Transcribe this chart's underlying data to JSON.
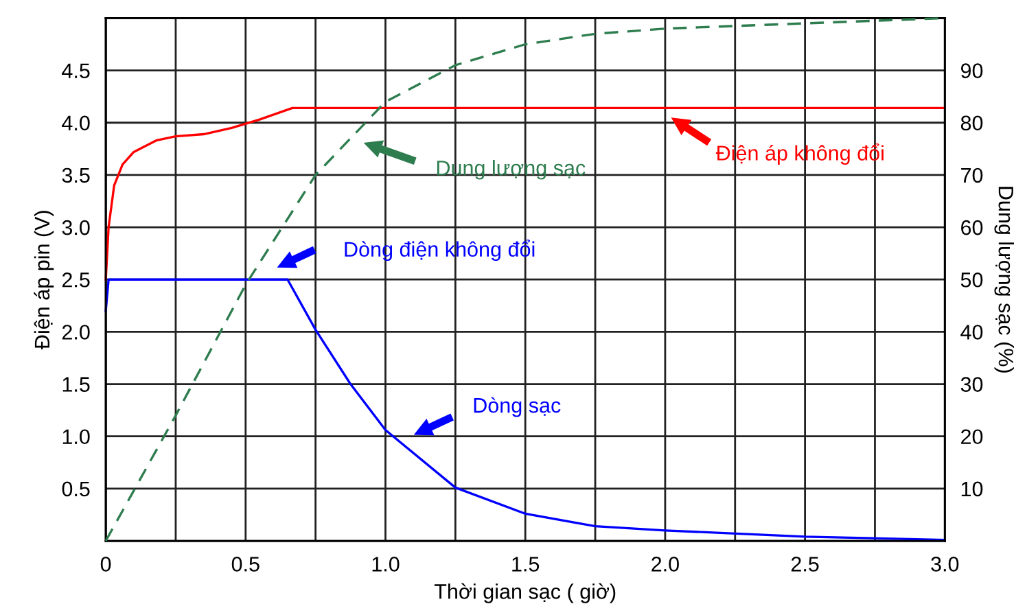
{
  "chart_data": {
    "type": "line",
    "xlabel": "Thời gian sạc ( giờ)",
    "ylabel": "Điện áp pin (V)",
    "y2label": "Dung lượng sạc (%)",
    "series": [
      {
        "color": "#ff0000",
        "line_style": "solid",
        "x": [
          0,
          0.01,
          0.03,
          0.06,
          0.1,
          0.18,
          0.25,
          0.35,
          0.45,
          0.55,
          0.667,
          1.0,
          2.0,
          3.0
        ],
        "values": [
          2.5,
          3.0,
          3.4,
          3.6,
          3.72,
          3.83,
          3.87,
          3.89,
          3.95,
          4.03,
          4.14,
          4.14,
          4.14,
          4.14
        ]
      },
      {
        "color": "#0000ff",
        "line_style": "solid",
        "x": [
          0,
          0.01,
          0.3,
          0.65,
          0.75,
          0.875,
          1.0,
          1.25,
          1.5,
          1.75,
          2.0,
          2.5,
          3.0
        ],
        "values": [
          2.2,
          2.5,
          2.5,
          2.5,
          2.02,
          1.5,
          1.06,
          0.51,
          0.26,
          0.14,
          0.1,
          0.04,
          0.01
        ]
      },
      {
        "color": "#2e7d4f",
        "line_style": "dashed",
        "axis": "y2",
        "x": [
          0,
          0.25,
          0.5,
          0.75,
          1.0,
          1.25,
          1.5,
          1.75,
          2.0,
          2.5,
          3.0
        ],
        "values": [
          0,
          24,
          49,
          70,
          84,
          91,
          95,
          97,
          98,
          99,
          100
        ]
      }
    ],
    "xlim": [
      0,
      3.0
    ],
    "xticks": [
      0,
      {
        "value": 0.25,
        "label": null
      },
      0.5,
      {
        "value": 0.75,
        "label": null
      },
      {
        "value": 1.0,
        "label": "1.0"
      },
      {
        "value": 1.25,
        "label": null
      },
      1.5,
      {
        "value": 1.75,
        "label": null
      },
      {
        "value": 2.0,
        "label": "2.0"
      },
      {
        "value": 2.25,
        "label": null
      },
      2.5,
      {
        "value": 2.75,
        "label": null
      },
      {
        "value": 3.0,
        "label": "3.0"
      }
    ],
    "ylim": [
      0,
      5.0
    ],
    "yticks": [
      0.5,
      {
        "value": 1.0,
        "label": "1.0"
      },
      1.5,
      {
        "value": 2.0,
        "label": "2.0"
      },
      2.5,
      {
        "value": 3.0,
        "label": "3.0"
      },
      3.5,
      {
        "value": 4.0,
        "label": "4.0"
      },
      4.5
    ],
    "y2lim": [
      0,
      100
    ],
    "y2ticks": [
      10,
      20,
      30,
      40,
      50,
      60,
      70,
      80,
      90
    ],
    "grid": true,
    "legend": false,
    "marker": "none",
    "annotations": [
      "Dung lượng sạc",
      "Điện áp không đổi",
      "Dòng điện không đổi",
      "Dòng sạc"
    ]
  }
}
